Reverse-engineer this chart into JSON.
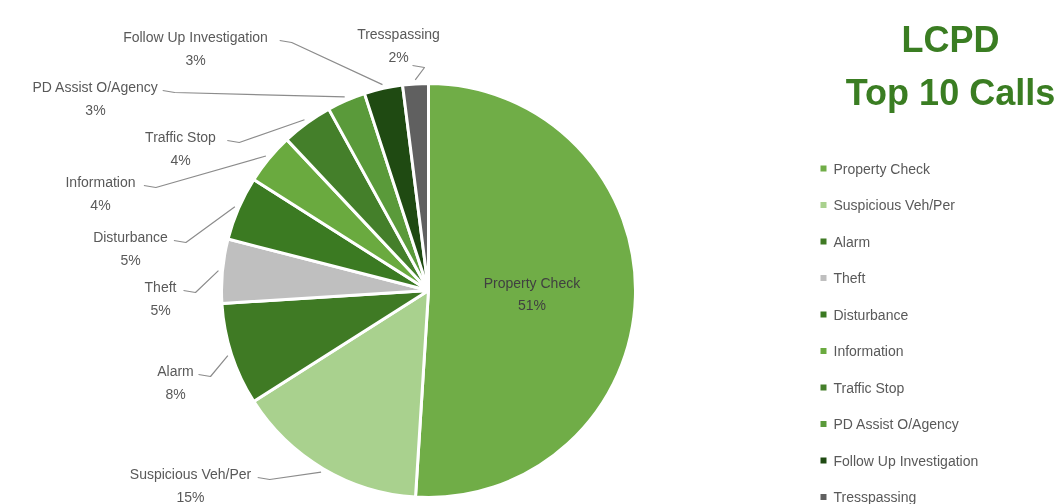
{
  "chart_data": {
    "type": "pie",
    "title": "LCPD\nTop 10 Calls",
    "categories": [
      "Property Check",
      "Suspicious Veh/Per",
      "Alarm",
      "Theft",
      "Disturbance",
      "Information",
      "Traffic Stop",
      "PD Assist O/Agency",
      "Follow Up Investigation",
      "Tresspassing"
    ],
    "values": [
      51,
      15,
      8,
      5,
      5,
      4,
      4,
      3,
      3,
      2
    ],
    "value_labels": [
      "51%",
      "15%",
      "8%",
      "5%",
      "5%",
      "4%",
      "4%",
      "3%",
      "3%",
      "2%"
    ],
    "colors": [
      "#70ad47",
      "#a9d18e",
      "#3f7a24",
      "#bfbfbf",
      "#3b7a22",
      "#6aaa3f",
      "#447f2a",
      "#5a9a3a",
      "#1f4a12",
      "#606060"
    ],
    "legend": "right"
  }
}
